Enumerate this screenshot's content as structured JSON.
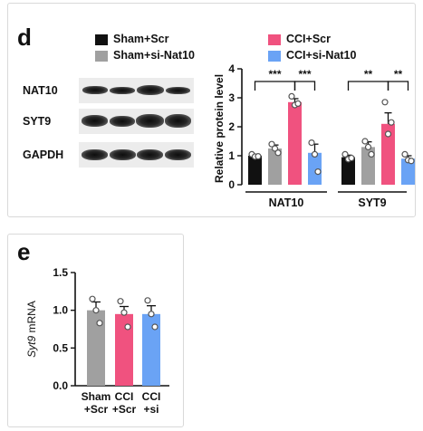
{
  "panel_d": {
    "letter": "d",
    "legend": [
      {
        "label": "Sham+Scr",
        "color": "#111111"
      },
      {
        "label": "Sham+si-Nat10",
        "color": "#a0a0a0"
      },
      {
        "label": "CCI+Scr",
        "color": "#f0527f"
      },
      {
        "label": "CCI+si-Nat10",
        "color": "#6aa3f5"
      }
    ],
    "blots": [
      {
        "label": "NAT10"
      },
      {
        "label": "SYT9"
      },
      {
        "label": "GAPDH"
      }
    ]
  },
  "panel_e": {
    "letter": "e"
  },
  "chart_data": [
    {
      "type": "bar",
      "panel": "d",
      "ylabel": "Relative protein level",
      "ylim": [
        0,
        4
      ],
      "yticks": [
        "0",
        "1",
        "2",
        "3",
        "4"
      ],
      "groups": [
        "NAT10",
        "SYT9"
      ],
      "series": [
        {
          "name": "Sham+Scr",
          "color": "#111111",
          "values": [
            1.0,
            0.95
          ],
          "errors": [
            0.05,
            0.07
          ],
          "points": [
            [
              1.05,
              0.97,
              0.98
            ],
            [
              1.05,
              0.88,
              0.92
            ]
          ]
        },
        {
          "name": "Sham+si-Nat10",
          "color": "#a0a0a0",
          "values": [
            1.25,
            1.3
          ],
          "errors": [
            0.12,
            0.18
          ],
          "points": [
            [
              1.4,
              1.25,
              1.1
            ],
            [
              1.5,
              1.3,
              1.05
            ]
          ]
        },
        {
          "name": "CCI+Scr",
          "color": "#f0527f",
          "values": [
            2.85,
            2.1
          ],
          "errors": [
            0.12,
            0.38
          ],
          "points": [
            [
              3.05,
              2.75,
              2.8
            ],
            [
              2.85,
              1.75,
              2.15
            ]
          ]
        },
        {
          "name": "CCI+si-Nat10",
          "color": "#6aa3f5",
          "values": [
            1.1,
            0.9
          ],
          "errors": [
            0.3,
            0.1
          ],
          "points": [
            [
              1.45,
              1.05,
              0.45
            ],
            [
              1.05,
              0.85,
              0.82
            ]
          ]
        }
      ],
      "significance": [
        {
          "group": 0,
          "pairs": [
            [
              0,
              2,
              "***"
            ],
            [
              2,
              3,
              "***"
            ]
          ]
        },
        {
          "group": 1,
          "pairs": [
            [
              0,
              2,
              "**"
            ],
            [
              2,
              3,
              "**"
            ]
          ]
        }
      ]
    },
    {
      "type": "bar",
      "panel": "e",
      "ylabel_italic": "Syt9",
      "ylabel_rest": " mRNA",
      "ylim": [
        0,
        1.5
      ],
      "yticks": [
        "0.0",
        "0.5",
        "1.0",
        "1.5"
      ],
      "categories": [
        {
          "line1": "Sham",
          "line2": "+Scr"
        },
        {
          "line1": "CCI",
          "line2": "+Scr"
        },
        {
          "line1": "CCI",
          "line2": "+si"
        }
      ],
      "colors": [
        "#a0a0a0",
        "#f0527f",
        "#6aa3f5"
      ],
      "values": [
        1.0,
        0.95,
        0.95
      ],
      "errors": [
        0.11,
        0.1,
        0.11
      ],
      "points": [
        [
          1.15,
          1.0,
          0.83
        ],
        [
          1.12,
          0.97,
          0.78
        ],
        [
          1.13,
          0.95,
          0.78
        ]
      ]
    }
  ]
}
